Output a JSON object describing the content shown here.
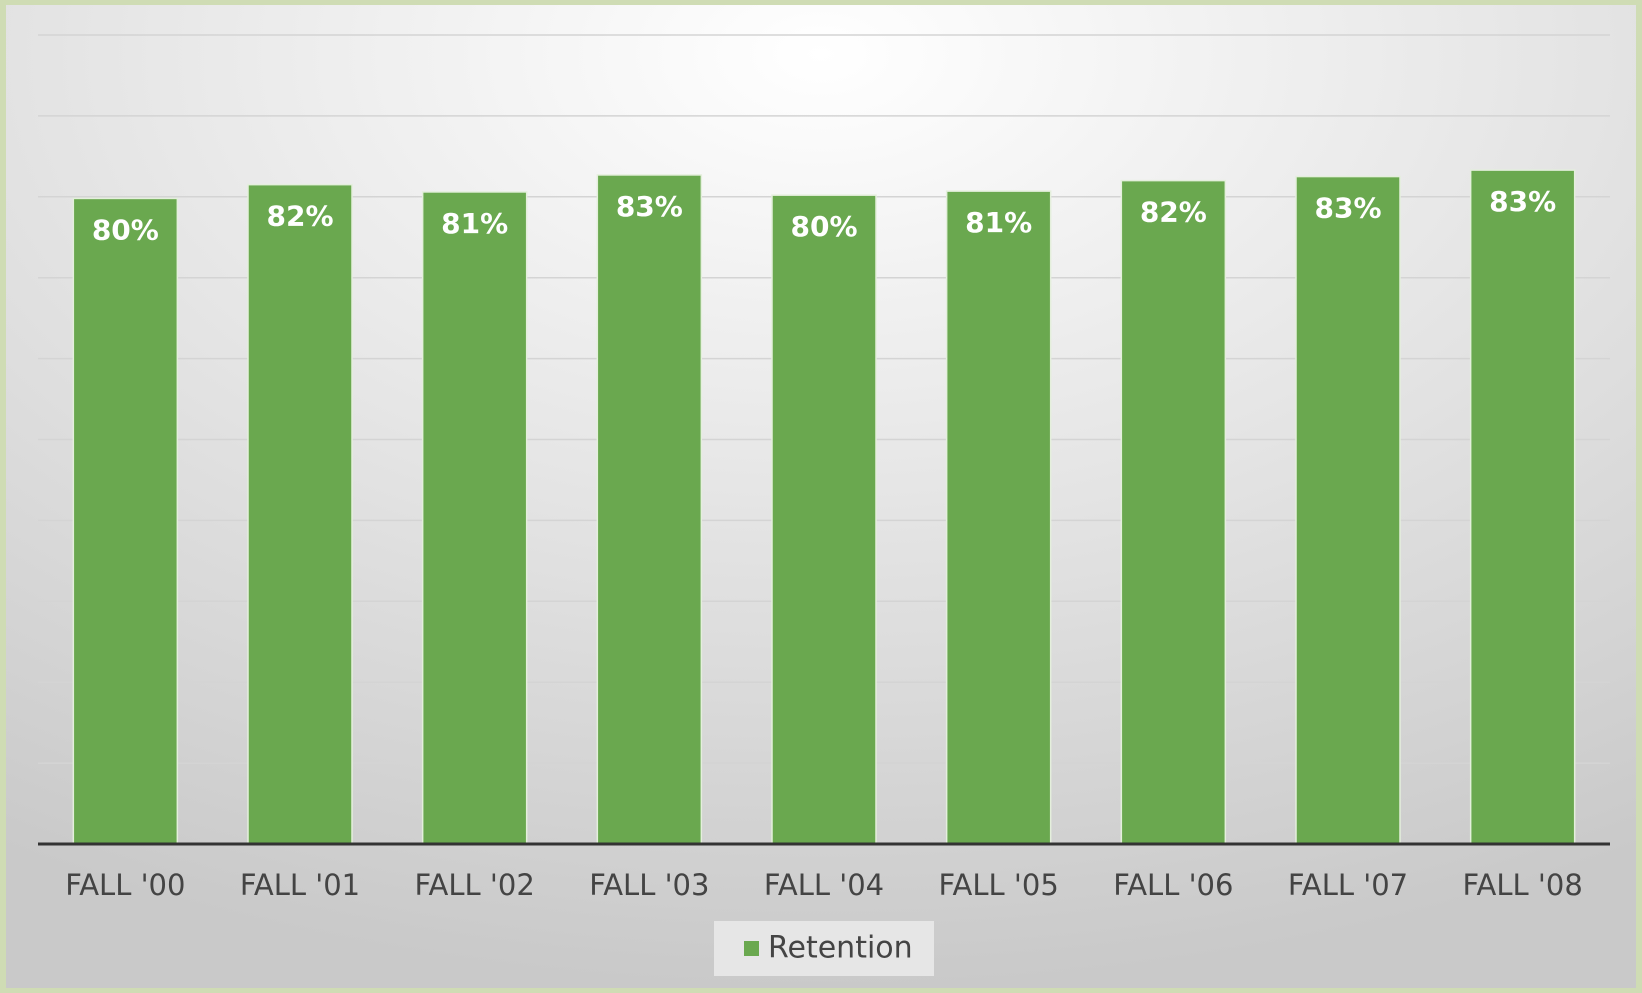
{
  "chart_data": {
    "type": "bar",
    "categories": [
      "FALL '00",
      "FALL '01",
      "FALL '02",
      "FALL '03",
      "FALL '04",
      "FALL '05",
      "FALL '06",
      "FALL '07",
      "FALL '08"
    ],
    "series": [
      {
        "name": "Retention",
        "color": "#6aa84f",
        "values": [
          79.8,
          81.5,
          80.6,
          82.7,
          80.2,
          80.7,
          82.0,
          82.5,
          83.3
        ],
        "value_labels": [
          "80%",
          "82%",
          "81%",
          "83%",
          "80%",
          "81%",
          "82%",
          "83%",
          "83%"
        ]
      }
    ],
    "ylim": [
      0,
      100
    ],
    "yticks": [
      0,
      10,
      20,
      30,
      40,
      50,
      60,
      70,
      80,
      90,
      100
    ],
    "grid": true,
    "legend": "bottom"
  }
}
